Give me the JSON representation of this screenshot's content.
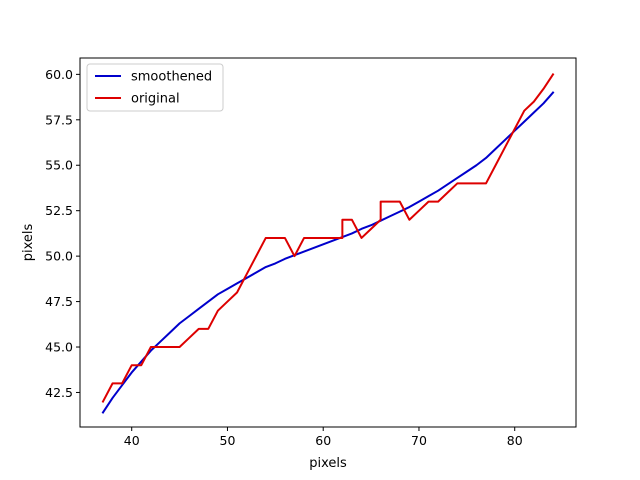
{
  "chart_data": {
    "type": "line",
    "title": "",
    "xlabel": "pixels",
    "ylabel": "pixels",
    "xlim": [
      34.6,
      86.4
    ],
    "ylim": [
      40.6,
      60.9
    ],
    "x_ticks": [
      40,
      50,
      60,
      70,
      80
    ],
    "x_tick_labels": [
      "40",
      "50",
      "60",
      "70",
      "80"
    ],
    "y_ticks": [
      42.5,
      45.0,
      47.5,
      50.0,
      52.5,
      55.0,
      57.5,
      60.0
    ],
    "y_tick_labels": [
      "42.5",
      "45.0",
      "47.5",
      "50.0",
      "52.5",
      "55.0",
      "57.5",
      "60.0"
    ],
    "grid": false,
    "legend_position": "upper-left",
    "series": [
      {
        "name": "smoothened",
        "color": "#0000cc",
        "points": [
          [
            37,
            41.4
          ],
          [
            38,
            42.2
          ],
          [
            39,
            42.9
          ],
          [
            40,
            43.6
          ],
          [
            41,
            44.2
          ],
          [
            42,
            44.8
          ],
          [
            43,
            45.3
          ],
          [
            44,
            45.8
          ],
          [
            45,
            46.3
          ],
          [
            46,
            46.7
          ],
          [
            47,
            47.1
          ],
          [
            48,
            47.5
          ],
          [
            49,
            47.9
          ],
          [
            50,
            48.2
          ],
          [
            51,
            48.5
          ],
          [
            52,
            48.8
          ],
          [
            53,
            49.1
          ],
          [
            54,
            49.4
          ],
          [
            55,
            49.6
          ],
          [
            56,
            49.85
          ],
          [
            57,
            50.05
          ],
          [
            58,
            50.25
          ],
          [
            59,
            50.45
          ],
          [
            60,
            50.65
          ],
          [
            61,
            50.85
          ],
          [
            62,
            51.05
          ],
          [
            63,
            51.25
          ],
          [
            64,
            51.5
          ],
          [
            65,
            51.7
          ],
          [
            66,
            51.95
          ],
          [
            67,
            52.2
          ],
          [
            68,
            52.45
          ],
          [
            69,
            52.7
          ],
          [
            70,
            53.0
          ],
          [
            71,
            53.3
          ],
          [
            72,
            53.6
          ],
          [
            73,
            53.95
          ],
          [
            74,
            54.3
          ],
          [
            75,
            54.65
          ],
          [
            76,
            55.0
          ],
          [
            77,
            55.4
          ],
          [
            78,
            55.9
          ],
          [
            79,
            56.4
          ],
          [
            80,
            56.9
          ],
          [
            81,
            57.4
          ],
          [
            82,
            57.9
          ],
          [
            83,
            58.4
          ],
          [
            84,
            59.0
          ]
        ]
      },
      {
        "name": "original",
        "color": "#dd0000",
        "points": [
          [
            37,
            42
          ],
          [
            38,
            43
          ],
          [
            39,
            43
          ],
          [
            40,
            44
          ],
          [
            41,
            44
          ],
          [
            42,
            45
          ],
          [
            43,
            45
          ],
          [
            44,
            45
          ],
          [
            45,
            45
          ],
          [
            46,
            45.5
          ],
          [
            47,
            46
          ],
          [
            48,
            46
          ],
          [
            49,
            47
          ],
          [
            50,
            47.5
          ],
          [
            51,
            48
          ],
          [
            52,
            49
          ],
          [
            53,
            50
          ],
          [
            54,
            51
          ],
          [
            55,
            51
          ],
          [
            56,
            51
          ],
          [
            57,
            50
          ],
          [
            58,
            51
          ],
          [
            59,
            51
          ],
          [
            60,
            51
          ],
          [
            61,
            51
          ],
          [
            62,
            51
          ],
          [
            62,
            52
          ],
          [
            63,
            52
          ],
          [
            64,
            51
          ],
          [
            65,
            51.5
          ],
          [
            66,
            52
          ],
          [
            66,
            53
          ],
          [
            67,
            53
          ],
          [
            68,
            53
          ],
          [
            69,
            52
          ],
          [
            70,
            52.5
          ],
          [
            71,
            53
          ],
          [
            72,
            53
          ],
          [
            73,
            53.5
          ],
          [
            74,
            54
          ],
          [
            75,
            54
          ],
          [
            76,
            54
          ],
          [
            77,
            54
          ],
          [
            78,
            55
          ],
          [
            79,
            56
          ],
          [
            80,
            57
          ],
          [
            81,
            58
          ],
          [
            82,
            58.5
          ],
          [
            83,
            59.2
          ],
          [
            84,
            60
          ]
        ]
      }
    ]
  }
}
